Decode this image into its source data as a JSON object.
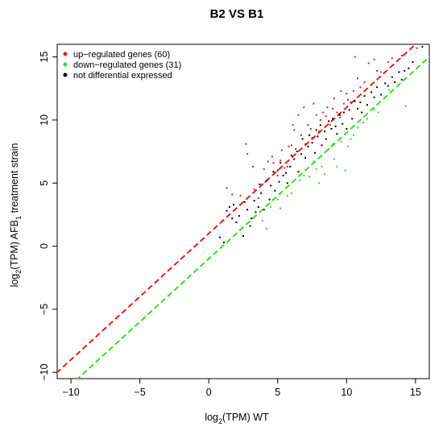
{
  "chart_data": {
    "type": "scatter",
    "title": "B2 VS B1",
    "xlabel": {
      "prefix": "log",
      "sub": "2",
      "suffix": "(TPM) WT"
    },
    "ylabel": {
      "prefix": "log",
      "sub": "2",
      "middle": "(TPM) AFB",
      "sub2": "1",
      "suffix": " treatment strain"
    },
    "xlim": [
      -11,
      16
    ],
    "ylim": [
      -10.5,
      16
    ],
    "xticks": [
      -10,
      -5,
      0,
      5,
      10,
      15
    ],
    "yticks": [
      -10,
      -5,
      0,
      5,
      10,
      15
    ],
    "tick_labels": [
      "−10",
      "−5",
      "0",
      "5",
      "10",
      "15"
    ],
    "grid": false,
    "legend_position": "top-left",
    "reference_lines": [
      {
        "name": "up-threshold",
        "color": "#e31a1c",
        "slope": 1,
        "intercept": 1
      },
      {
        "name": "down-threshold",
        "color": "#33dd22",
        "slope": 1,
        "intercept": -1
      }
    ],
    "series": [
      {
        "name": "up−regulated genes (60)",
        "color": "#e31a1c",
        "points": [
          [
            1.3,
            4.6
          ],
          [
            1.7,
            4.1
          ],
          [
            2.3,
            4.0
          ],
          [
            2.7,
            8.1
          ],
          [
            2.8,
            7.3
          ],
          [
            3.2,
            6.3
          ],
          [
            3.3,
            4.5
          ],
          [
            3.6,
            3.8
          ],
          [
            4.0,
            6.1
          ],
          [
            4.1,
            5.1
          ],
          [
            4.3,
            6.7
          ],
          [
            4.6,
            7.1
          ],
          [
            4.7,
            6.6
          ],
          [
            5.0,
            5.6
          ],
          [
            5.2,
            6.8
          ],
          [
            5.3,
            7.6
          ],
          [
            5.5,
            6.2
          ],
          [
            5.7,
            6.3
          ],
          [
            5.8,
            7.9
          ],
          [
            6.0,
            8.0
          ],
          [
            6.1,
            9.6
          ],
          [
            6.2,
            9.2
          ],
          [
            6.3,
            7.7
          ],
          [
            6.5,
            10.4
          ],
          [
            6.7,
            8.8
          ],
          [
            6.9,
            11.0
          ],
          [
            7.0,
            8.1
          ],
          [
            7.2,
            9.6
          ],
          [
            7.4,
            9.3
          ],
          [
            7.5,
            8.6
          ],
          [
            7.6,
            11.3
          ],
          [
            7.8,
            10.4
          ],
          [
            8.0,
            9.1
          ],
          [
            8.1,
            10.0
          ],
          [
            8.3,
            10.6
          ],
          [
            8.5,
            10.3
          ],
          [
            8.6,
            11.0
          ],
          [
            8.8,
            9.6
          ],
          [
            9.0,
            10.9
          ],
          [
            9.1,
            11.7
          ],
          [
            9.3,
            10.6
          ],
          [
            9.5,
            10.2
          ],
          [
            9.6,
            12.3
          ],
          [
            9.8,
            11.3
          ],
          [
            10.0,
            12.1
          ],
          [
            10.1,
            11.6
          ],
          [
            10.3,
            11.4
          ],
          [
            10.5,
            12.3
          ],
          [
            10.6,
            15.0
          ],
          [
            10.8,
            13.3
          ],
          [
            11.0,
            12.6
          ],
          [
            11.3,
            13.0
          ],
          [
            11.6,
            14.5
          ],
          [
            12.0,
            14.8
          ],
          [
            12.2,
            13.9
          ],
          [
            12.5,
            13.8
          ],
          [
            13.0,
            14.6
          ],
          [
            13.3,
            14.9
          ],
          [
            14.0,
            15.1
          ],
          [
            15.1,
            15.7
          ]
        ]
      },
      {
        "name": "down−regulated genes (31)",
        "color": "#33dd22",
        "points": [
          [
            3.9,
            2.0
          ],
          [
            4.2,
            1.4
          ],
          [
            4.5,
            3.1
          ],
          [
            5.0,
            3.7
          ],
          [
            5.2,
            3.0
          ],
          [
            5.7,
            4.0
          ],
          [
            6.0,
            4.2
          ],
          [
            6.6,
            5.2
          ],
          [
            6.9,
            5.6
          ],
          [
            7.3,
            5.5
          ],
          [
            7.6,
            6.7
          ],
          [
            7.8,
            6.1
          ],
          [
            8.0,
            5.0
          ],
          [
            8.2,
            6.3
          ],
          [
            8.4,
            5.7
          ],
          [
            8.7,
            7.7
          ],
          [
            9.0,
            8.1
          ],
          [
            9.1,
            6.9
          ],
          [
            9.3,
            6.3
          ],
          [
            9.6,
            8.3
          ],
          [
            9.9,
            6.0
          ],
          [
            10.1,
            7.9
          ],
          [
            10.3,
            8.5
          ],
          [
            10.5,
            8.8
          ],
          [
            10.8,
            9.4
          ],
          [
            11.2,
            9.8
          ],
          [
            11.5,
            10.1
          ],
          [
            12.0,
            10.8
          ],
          [
            12.3,
            10.6
          ],
          [
            13.1,
            12.4
          ],
          [
            14.3,
            11.1
          ]
        ]
      },
      {
        "name": "not differential expressed",
        "color": "#000000",
        "points": [
          [
            0.8,
            0.7
          ],
          [
            1.1,
            0.3
          ],
          [
            1.3,
            2.8
          ],
          [
            1.5,
            3.1
          ],
          [
            1.7,
            2.2
          ],
          [
            1.8,
            3.3
          ],
          [
            2.0,
            1.9
          ],
          [
            2.2,
            2.4
          ],
          [
            2.5,
            0.8
          ],
          [
            2.6,
            3.5
          ],
          [
            2.8,
            2.9
          ],
          [
            3.0,
            1.6
          ],
          [
            3.1,
            2.2
          ],
          [
            3.3,
            3.6
          ],
          [
            3.4,
            2.7
          ],
          [
            3.6,
            3.1
          ],
          [
            3.7,
            4.9
          ],
          [
            3.8,
            4.2
          ],
          [
            4.0,
            2.9
          ],
          [
            4.2,
            5.2
          ],
          [
            4.4,
            3.7
          ],
          [
            4.5,
            4.8
          ],
          [
            4.7,
            5.9
          ],
          [
            4.8,
            4.4
          ],
          [
            5.0,
            6.0
          ],
          [
            5.1,
            5.1
          ],
          [
            5.2,
            6.6
          ],
          [
            5.4,
            5.6
          ],
          [
            5.6,
            5.8
          ],
          [
            5.7,
            5.0
          ],
          [
            5.9,
            6.3
          ],
          [
            6.0,
            7.2
          ],
          [
            6.2,
            6.9
          ],
          [
            6.4,
            7.5
          ],
          [
            6.5,
            5.9
          ],
          [
            6.7,
            7.3
          ],
          [
            6.8,
            8.5
          ],
          [
            7.0,
            7.0
          ],
          [
            7.2,
            7.9
          ],
          [
            7.3,
            8.8
          ],
          [
            7.5,
            8.2
          ],
          [
            7.7,
            7.4
          ],
          [
            7.8,
            9.2
          ],
          [
            7.9,
            8.7
          ],
          [
            8.1,
            9.6
          ],
          [
            8.2,
            8.0
          ],
          [
            8.4,
            9.1
          ],
          [
            8.5,
            8.5
          ],
          [
            8.7,
            9.9
          ],
          [
            8.9,
            9.3
          ],
          [
            9.0,
            10.1
          ],
          [
            9.2,
            9.5
          ],
          [
            9.3,
            8.9
          ],
          [
            9.5,
            10.4
          ],
          [
            9.7,
            9.7
          ],
          [
            9.8,
            10.6
          ],
          [
            10.0,
            9.3
          ],
          [
            10.2,
            10.8
          ],
          [
            10.4,
            10.1
          ],
          [
            10.6,
            11.5
          ],
          [
            10.8,
            10.9
          ],
          [
            11.0,
            11.4
          ],
          [
            11.1,
            10.6
          ],
          [
            11.3,
            11.9
          ],
          [
            11.5,
            11.2
          ],
          [
            11.8,
            12.2
          ],
          [
            12.0,
            11.8
          ],
          [
            12.2,
            12.6
          ],
          [
            12.5,
            12.0
          ],
          [
            12.8,
            12.9
          ],
          [
            13.0,
            12.7
          ],
          [
            13.3,
            13.4
          ],
          [
            13.5,
            13.0
          ],
          [
            13.8,
            13.8
          ],
          [
            14.0,
            13.2
          ],
          [
            14.2,
            13.9
          ],
          [
            14.5,
            14.1
          ],
          [
            14.8,
            14.6
          ],
          [
            15.5,
            15.8
          ]
        ]
      }
    ]
  }
}
